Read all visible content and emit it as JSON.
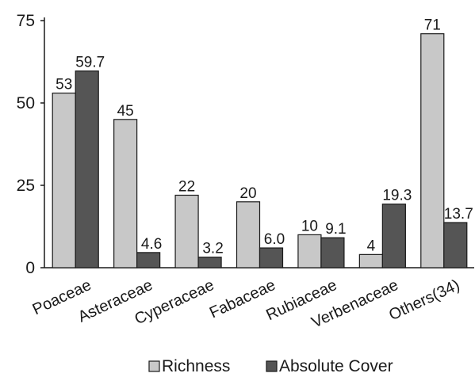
{
  "chart_data": {
    "type": "bar",
    "categories": [
      "Poaceae",
      "Asteraceae",
      "Cyperaceae",
      "Fabaceae",
      "Rubiaceae",
      "Verbenaceae",
      "Others(34)"
    ],
    "series": [
      {
        "name": "Richness",
        "values": [
          53,
          45,
          22,
          20,
          10,
          4,
          71
        ],
        "labels": [
          "53",
          "45",
          "22",
          "20",
          "10",
          "4",
          "71"
        ],
        "color": "#c8c8c8"
      },
      {
        "name": "Absolute Cover",
        "values": [
          59.7,
          4.6,
          3.2,
          6.0,
          9.1,
          19.3,
          13.7
        ],
        "labels": [
          "59.7",
          "4.6",
          "3.2",
          "6.0",
          "9.1",
          "19.3",
          "13.7"
        ],
        "color": "#555555"
      }
    ],
    "yticks": [
      "0",
      "25",
      "50",
      "75"
    ],
    "ylim": [
      0,
      75
    ],
    "title": "",
    "xlabel": "",
    "ylabel": "",
    "grid": false,
    "legend_position": "bottom"
  }
}
